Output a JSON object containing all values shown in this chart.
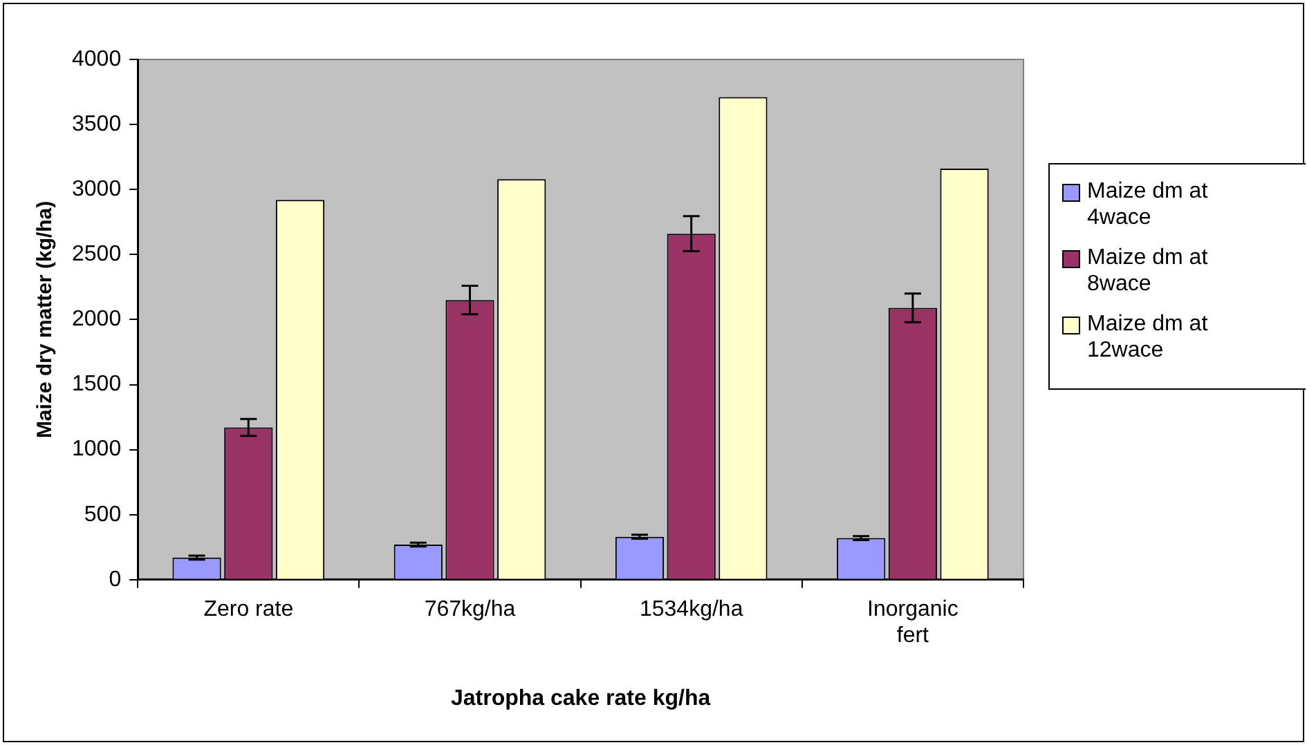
{
  "chart_data": {
    "type": "bar",
    "xlabel": "Jatropha cake rate kg/ha",
    "ylabel": "Maize dry matter (kg/ha)",
    "categories": [
      "Zero rate",
      "767kg/ha",
      "1534kg/ha",
      "Inorganic fert"
    ],
    "series": [
      {
        "name": "Maize dm at 4wace",
        "color": "#9999ff",
        "values": [
          170,
          270,
          330,
          320
        ],
        "errors": [
          15,
          15,
          15,
          15
        ]
      },
      {
        "name": "Maize dm at 8wace",
        "color": "#993366",
        "values": [
          1170,
          2150,
          2660,
          2090
        ],
        "errors": [
          65,
          110,
          135,
          110
        ]
      },
      {
        "name": "Maize dm at 12wace",
        "color": "#ffffcc",
        "values": [
          2920,
          3080,
          3710,
          3160
        ]
      }
    ],
    "ylim": [
      0,
      4000
    ],
    "yticks": [
      0,
      500,
      1000,
      1500,
      2000,
      2500,
      3000,
      3500,
      4000
    ],
    "grid": false,
    "legend": "right"
  }
}
